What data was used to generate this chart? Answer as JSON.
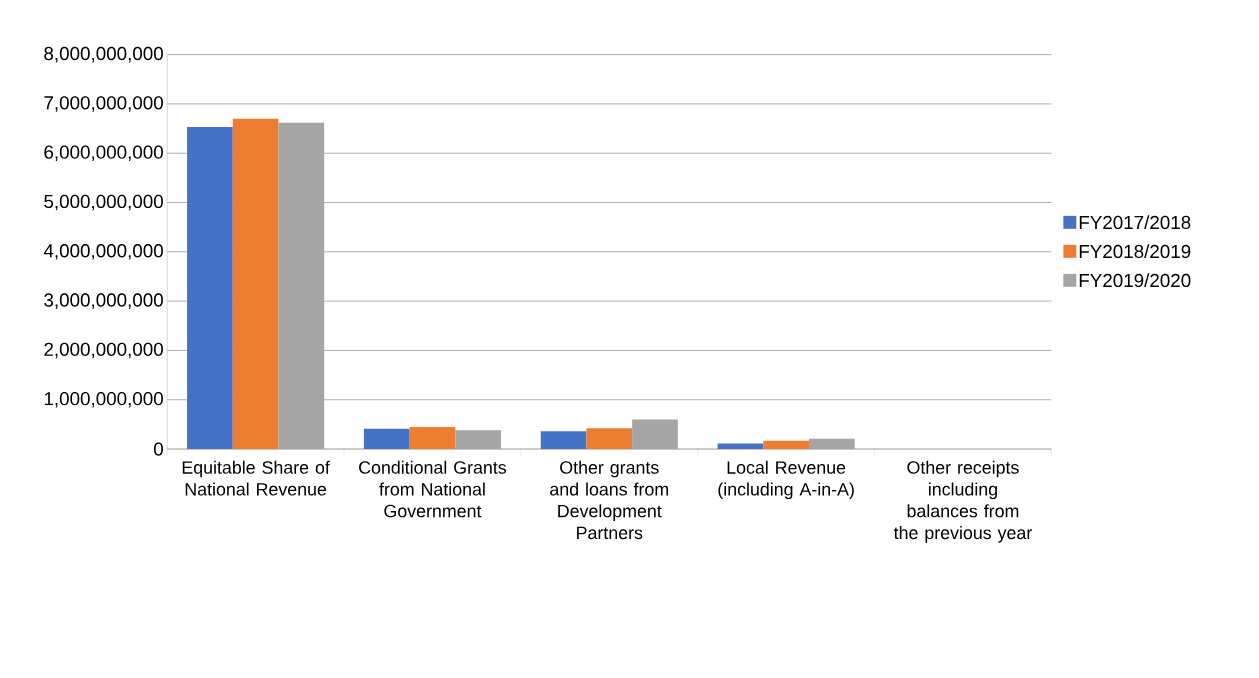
{
  "chart_data": {
    "type": "bar",
    "categories": [
      "Equitable Share of National Revenue",
      "Conditional Grants from National Government",
      "Other grants and loans from Development Partners",
      "Local Revenue (including A-in-A)",
      "Other receipts including balances from the previous year"
    ],
    "series": [
      {
        "name": "FY2017/2018",
        "color": "#4472c4",
        "values": [
          6530000000,
          410000000,
          360000000,
          110000000,
          null
        ]
      },
      {
        "name": "FY2018/2019",
        "color": "#ed7d31",
        "values": [
          6700000000,
          445000000,
          420000000,
          170000000,
          null
        ]
      },
      {
        "name": "FY2019/2020",
        "color": "#a5a5a5",
        "values": [
          6620000000,
          380000000,
          600000000,
          210000000,
          null
        ]
      }
    ],
    "ylim": [
      0,
      8000000000
    ],
    "yticks": [
      0,
      {
        "value": 1000000000,
        "label": "1,000,000,000"
      },
      {
        "value": 2000000000,
        "label": "2,000,000,000"
      },
      {
        "value": 3000000000,
        "label": "3,000,000,000"
      },
      {
        "value": 4000000000,
        "label": "4,000,000,000"
      },
      {
        "value": 5000000000,
        "label": "5,000,000,000"
      },
      {
        "value": 6000000000,
        "label": "6,000,000,000"
      },
      {
        "value": 7000000000,
        "label": "7,000,000,000"
      },
      {
        "value": 8000000000,
        "label": "8,000,000,000"
      }
    ],
    "grid": "y",
    "legend": "right"
  }
}
